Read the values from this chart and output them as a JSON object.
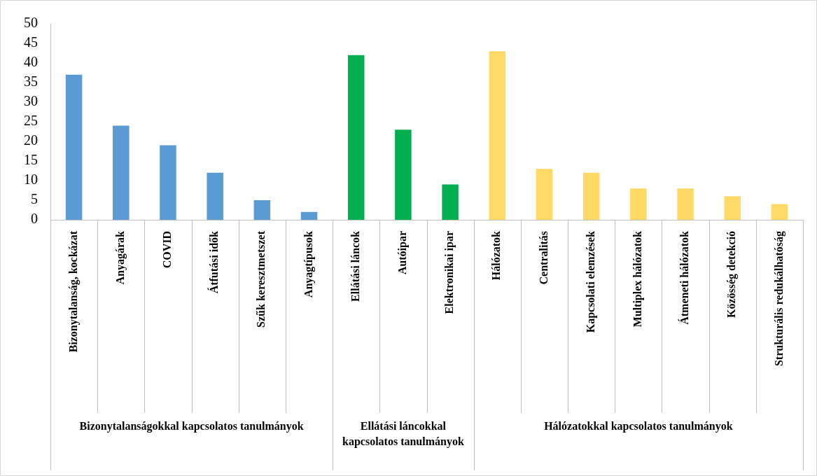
{
  "chart_data": {
    "type": "bar",
    "categories": [
      "Bizonytalanság, kockázat",
      "Anyagárak",
      "COVID",
      "Átfutási idők",
      "Szűk keresztmetszet",
      "Anyagtípusok",
      "Ellátási láncok",
      "Autóipar",
      "Elektronikai ipar",
      "Hálózatok",
      "Centralitás",
      "Kapcsolati elemzések",
      "Multiplex hálózatok",
      "Átmeneti hálózatok",
      "Közösség detekció",
      "Strukturális redukálhatóság"
    ],
    "values": [
      37,
      24,
      19,
      12,
      5,
      2,
      42,
      23,
      9,
      43,
      13,
      12,
      8,
      8,
      6,
      4
    ],
    "colors": [
      "#5b9bd5",
      "#5b9bd5",
      "#5b9bd5",
      "#5b9bd5",
      "#5b9bd5",
      "#5b9bd5",
      "#00b050",
      "#00b050",
      "#00b050",
      "#ffd966",
      "#ffd966",
      "#ffd966",
      "#ffd966",
      "#ffd966",
      "#ffd966",
      "#ffd966"
    ],
    "ylim": [
      0,
      50
    ],
    "yticks": [
      0,
      5,
      10,
      15,
      20,
      25,
      30,
      35,
      40,
      45,
      50
    ],
    "annotations": [
      "Bizonytalanságokkal kapcsolatos tanulmányok",
      "Ellátási láncokkal kapcsolatos tanulmányok",
      "Hálózatokkal kapcsolatos tanulmányok"
    ]
  }
}
